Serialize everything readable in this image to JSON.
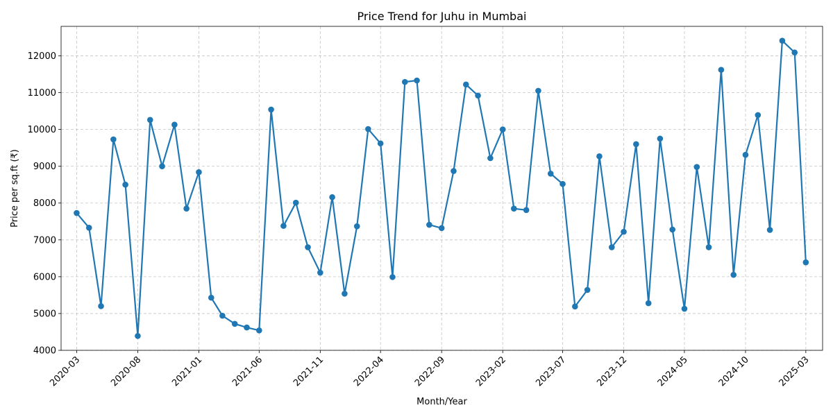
{
  "chart_data": {
    "type": "line",
    "title": "Price Trend for Juhu in Mumbai",
    "xlabel": "Month/Year",
    "ylabel": "Price per sq.ft (₹)",
    "ylim": [
      4000,
      12800
    ],
    "yticks": [
      4000,
      5000,
      6000,
      7000,
      8000,
      9000,
      10000,
      11000,
      12000
    ],
    "xlim": [
      "2020-01-22",
      "2025-04-12"
    ],
    "xticks": [
      "2020-03",
      "2020-08",
      "2021-01",
      "2021-06",
      "2021-11",
      "2022-04",
      "2022-09",
      "2023-02",
      "2023-07",
      "2023-12",
      "2024-05",
      "2024-10",
      "2025-03"
    ],
    "grid": true,
    "line_color": "#1f77b4",
    "series": [
      {
        "x": [
          "2020-03-01",
          "2020-04-01",
          "2020-05-01",
          "2020-06-01",
          "2020-07-01",
          "2020-08-01",
          "2020-09-01",
          "2020-10-01",
          "2020-11-01",
          "2020-12-01",
          "2021-01-01",
          "2021-02-01",
          "2021-03-01",
          "2021-04-01",
          "2021-05-01",
          "2021-06-01",
          "2021-07-01",
          "2021-08-01",
          "2021-09-01",
          "2021-10-01",
          "2021-11-01",
          "2021-12-01",
          "2022-01-01",
          "2022-02-01",
          "2022-03-01",
          "2022-04-01",
          "2022-05-01",
          "2022-06-01",
          "2022-07-01",
          "2022-08-01",
          "2022-09-01",
          "2022-10-01",
          "2022-11-01",
          "2022-12-01",
          "2023-01-01",
          "2023-02-01",
          "2023-03-01",
          "2023-04-01",
          "2023-05-01",
          "2023-06-01",
          "2023-07-01",
          "2023-08-01",
          "2023-09-01",
          "2023-10-01",
          "2023-11-01",
          "2023-12-01",
          "2024-01-01",
          "2024-02-01",
          "2024-03-01",
          "2024-04-01",
          "2024-05-01",
          "2024-06-01",
          "2024-07-01",
          "2024-08-01",
          "2024-09-01",
          "2024-10-01",
          "2024-11-01",
          "2024-12-01",
          "2025-01-01",
          "2025-02-01",
          "2025-03-01"
        ],
        "values": [
          7730,
          7330,
          5200,
          9730,
          8500,
          4390,
          10260,
          9000,
          10130,
          7850,
          8840,
          5430,
          4940,
          4720,
          4620,
          4540,
          10540,
          7380,
          8010,
          6800,
          6110,
          8160,
          5540,
          7370,
          10010,
          9620,
          5990,
          11290,
          11330,
          7410,
          7320,
          8870,
          11220,
          10920,
          9220,
          10000,
          7850,
          7810,
          11050,
          8800,
          8520,
          5190,
          5640,
          9270,
          6800,
          7220,
          9600,
          5280,
          9750,
          7280,
          5130,
          8980,
          6800,
          11620,
          6050,
          9310,
          10390,
          7270,
          12410,
          12090,
          6390
        ]
      }
    ]
  }
}
